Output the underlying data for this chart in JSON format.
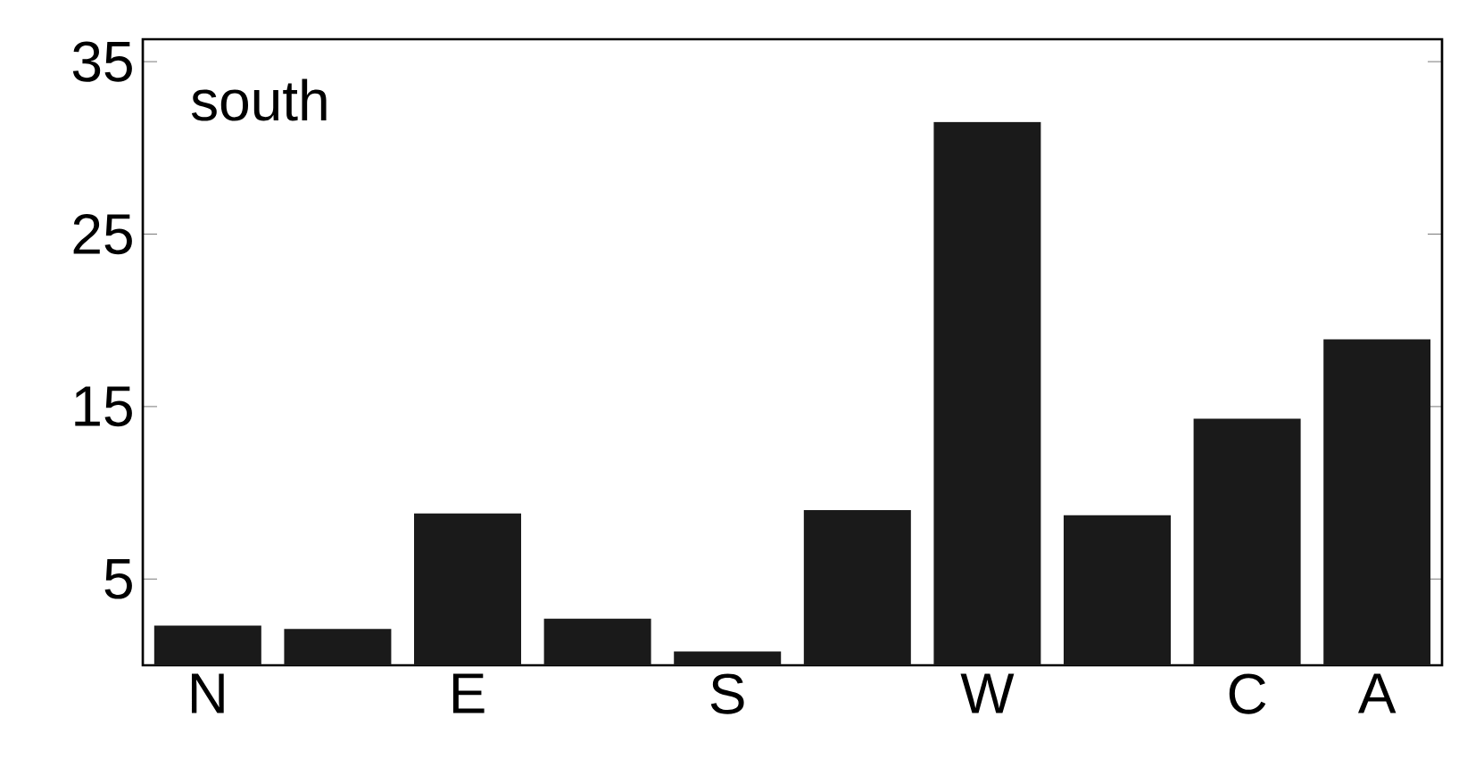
{
  "chart_data": {
    "type": "bar",
    "categories": [
      "N",
      null,
      "E",
      null,
      "S",
      null,
      "W",
      null,
      "C",
      "A"
    ],
    "values": [
      2.3,
      2.1,
      8.8,
      2.7,
      0.8,
      9.0,
      31.5,
      8.7,
      14.3,
      18.9
    ],
    "color": "#1a1a1a",
    "ylim": [
      0,
      36.3
    ],
    "yticks": [
      5,
      15,
      25,
      35
    ],
    "grid": false,
    "annotations": [
      "south"
    ]
  }
}
